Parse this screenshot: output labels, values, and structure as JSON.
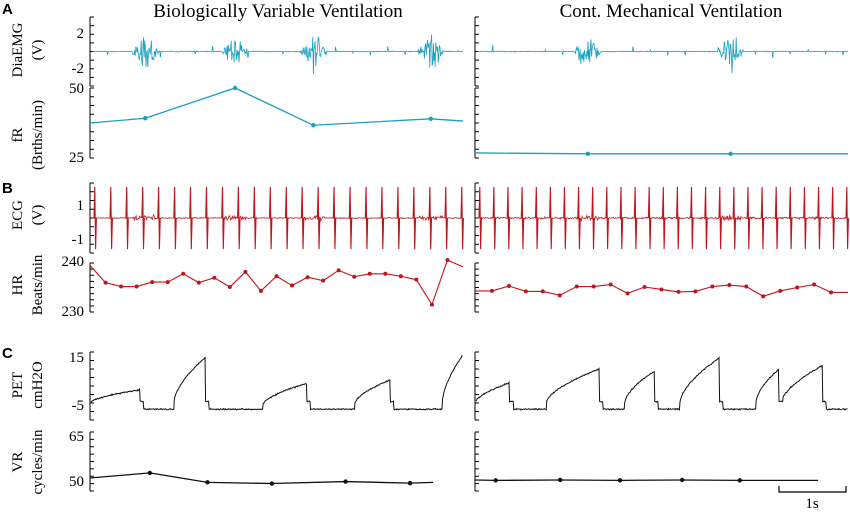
{
  "titles": {
    "left": "Biologically Variable Ventilation",
    "right": "Cont. Mechanical Ventilation"
  },
  "colors": {
    "emg": "#1b9fc0",
    "ecg": "#c0141e",
    "pet": "#111111"
  },
  "scale_bar": {
    "label": "1s"
  },
  "chart_data": [
    {
      "type": "line",
      "panel": "A",
      "variable": "DiaEMG",
      "ylabel": [
        "DiaEMG",
        "(V)"
      ],
      "yticks": [
        "2",
        "-2"
      ],
      "ylim": [
        -3,
        3
      ],
      "series": [
        {
          "column": "left",
          "bursts": [
            1.2,
            3.15,
            4.85,
            7.4
          ],
          "beats_per_second": 2.63
        },
        {
          "column": "right",
          "bursts": [
            2.45,
            5.55
          ],
          "beats_per_second": 2.63
        }
      ]
    },
    {
      "type": "line",
      "panel": "A",
      "variable": "fR",
      "ylabel": [
        "fR",
        "(Brths/min)"
      ],
      "yticks": [
        "50",
        "25"
      ],
      "ylim": [
        25,
        50
      ],
      "series": [
        {
          "column": "left",
          "x": [
            0,
            1.2,
            3.15,
            4.85,
            7.4,
            8.1
          ],
          "y": [
            37.5,
            39.2,
            50.0,
            36.7,
            39.0,
            38.2
          ]
        },
        {
          "column": "right",
          "x": [
            0,
            2.45,
            5.55,
            8.1
          ],
          "y": [
            26.8,
            26.5,
            26.5,
            26.5
          ]
        }
      ]
    },
    {
      "type": "line",
      "panel": "B",
      "variable": "ECG",
      "ylabel": [
        "ECG",
        "(V)"
      ],
      "yticks": [
        "1",
        "-1"
      ],
      "ylim": [
        -1.8,
        1.8
      ],
      "series": [
        {
          "column": "left",
          "beats": 24,
          "noise_bursts": [
            1.2,
            3.15,
            4.85,
            7.4
          ]
        },
        {
          "column": "right",
          "beats": 27,
          "noise_bursts": [
            2.45,
            5.55
          ]
        }
      ]
    },
    {
      "type": "line",
      "panel": "B",
      "variable": "HR",
      "ylabel": [
        "HR",
        "Beats/min"
      ],
      "yticks": [
        "240",
        "230"
      ],
      "ylim": [
        230,
        240
      ],
      "series": [
        {
          "column": "left",
          "y": [
            239.5,
            236.0,
            235.2,
            235.2,
            236.1,
            236.1,
            237.8,
            236.0,
            237.0,
            235.1,
            238.2,
            234.3,
            237.3,
            235.4,
            237.1,
            236.4,
            238.5,
            237.2,
            237.8,
            237.8,
            237.3,
            236.6,
            231.5,
            240.6,
            239.2
          ]
        },
        {
          "column": "right",
          "y": [
            234.3,
            234.3,
            235.3,
            234.2,
            234.2,
            233.4,
            235.2,
            235.2,
            235.6,
            233.8,
            235.1,
            234.6,
            234.1,
            234.2,
            235.2,
            235.5,
            235.2,
            233.2,
            234.3,
            235.0,
            235.6,
            234.0,
            234.0
          ]
        }
      ]
    },
    {
      "type": "line",
      "panel": "C",
      "variable": "PET",
      "ylabel": [
        "PET",
        "cmH2O"
      ],
      "yticks": [
        "15",
        "-5"
      ],
      "ylim": [
        -7,
        15
      ],
      "series": [
        {
          "column": "left",
          "cycles": [
            [
              0.0,
              1.08,
              -3.5,
              2.8
            ],
            [
              1.82,
              2.5,
              -3.5,
              13.2
            ],
            [
              3.75,
              4.7,
              -4.2,
              4.8
            ],
            [
              5.75,
              6.52,
              -3.8,
              6.0
            ],
            [
              7.65,
              8.1,
              -3.5,
              14.0
            ]
          ]
        },
        {
          "column": "right",
          "cycles": [
            [
              0.0,
              0.75,
              -3.5,
              5.0
            ],
            [
              1.55,
              2.7,
              -3.5,
              9.5
            ],
            [
              3.25,
              3.9,
              -3.5,
              8.8
            ],
            [
              4.45,
              5.3,
              -3.5,
              13.0
            ],
            [
              6.1,
              6.6,
              -3.5,
              9.5
            ],
            [
              6.65,
              7.55,
              -3.5,
              10.6
            ]
          ]
        }
      ]
    },
    {
      "type": "line",
      "panel": "C",
      "variable": "VR",
      "ylabel": [
        "VR",
        "cycles/min"
      ],
      "yticks": [
        "65",
        "50"
      ],
      "ylim": [
        50,
        65
      ],
      "series": [
        {
          "column": "left",
          "x": [
            0,
            1.3,
            2.55,
            3.95,
            5.55,
            6.95,
            7.45
          ],
          "y": [
            53.3,
            54.6,
            52.2,
            51.9,
            52.4,
            52.0,
            52.2
          ]
        },
        {
          "column": "right",
          "x": [
            0,
            0.45,
            1.85,
            3.15,
            4.5,
            5.75,
            7.45
          ],
          "y": [
            52.8,
            52.7,
            52.8,
            52.7,
            52.8,
            52.7,
            52.7
          ]
        }
      ]
    }
  ]
}
